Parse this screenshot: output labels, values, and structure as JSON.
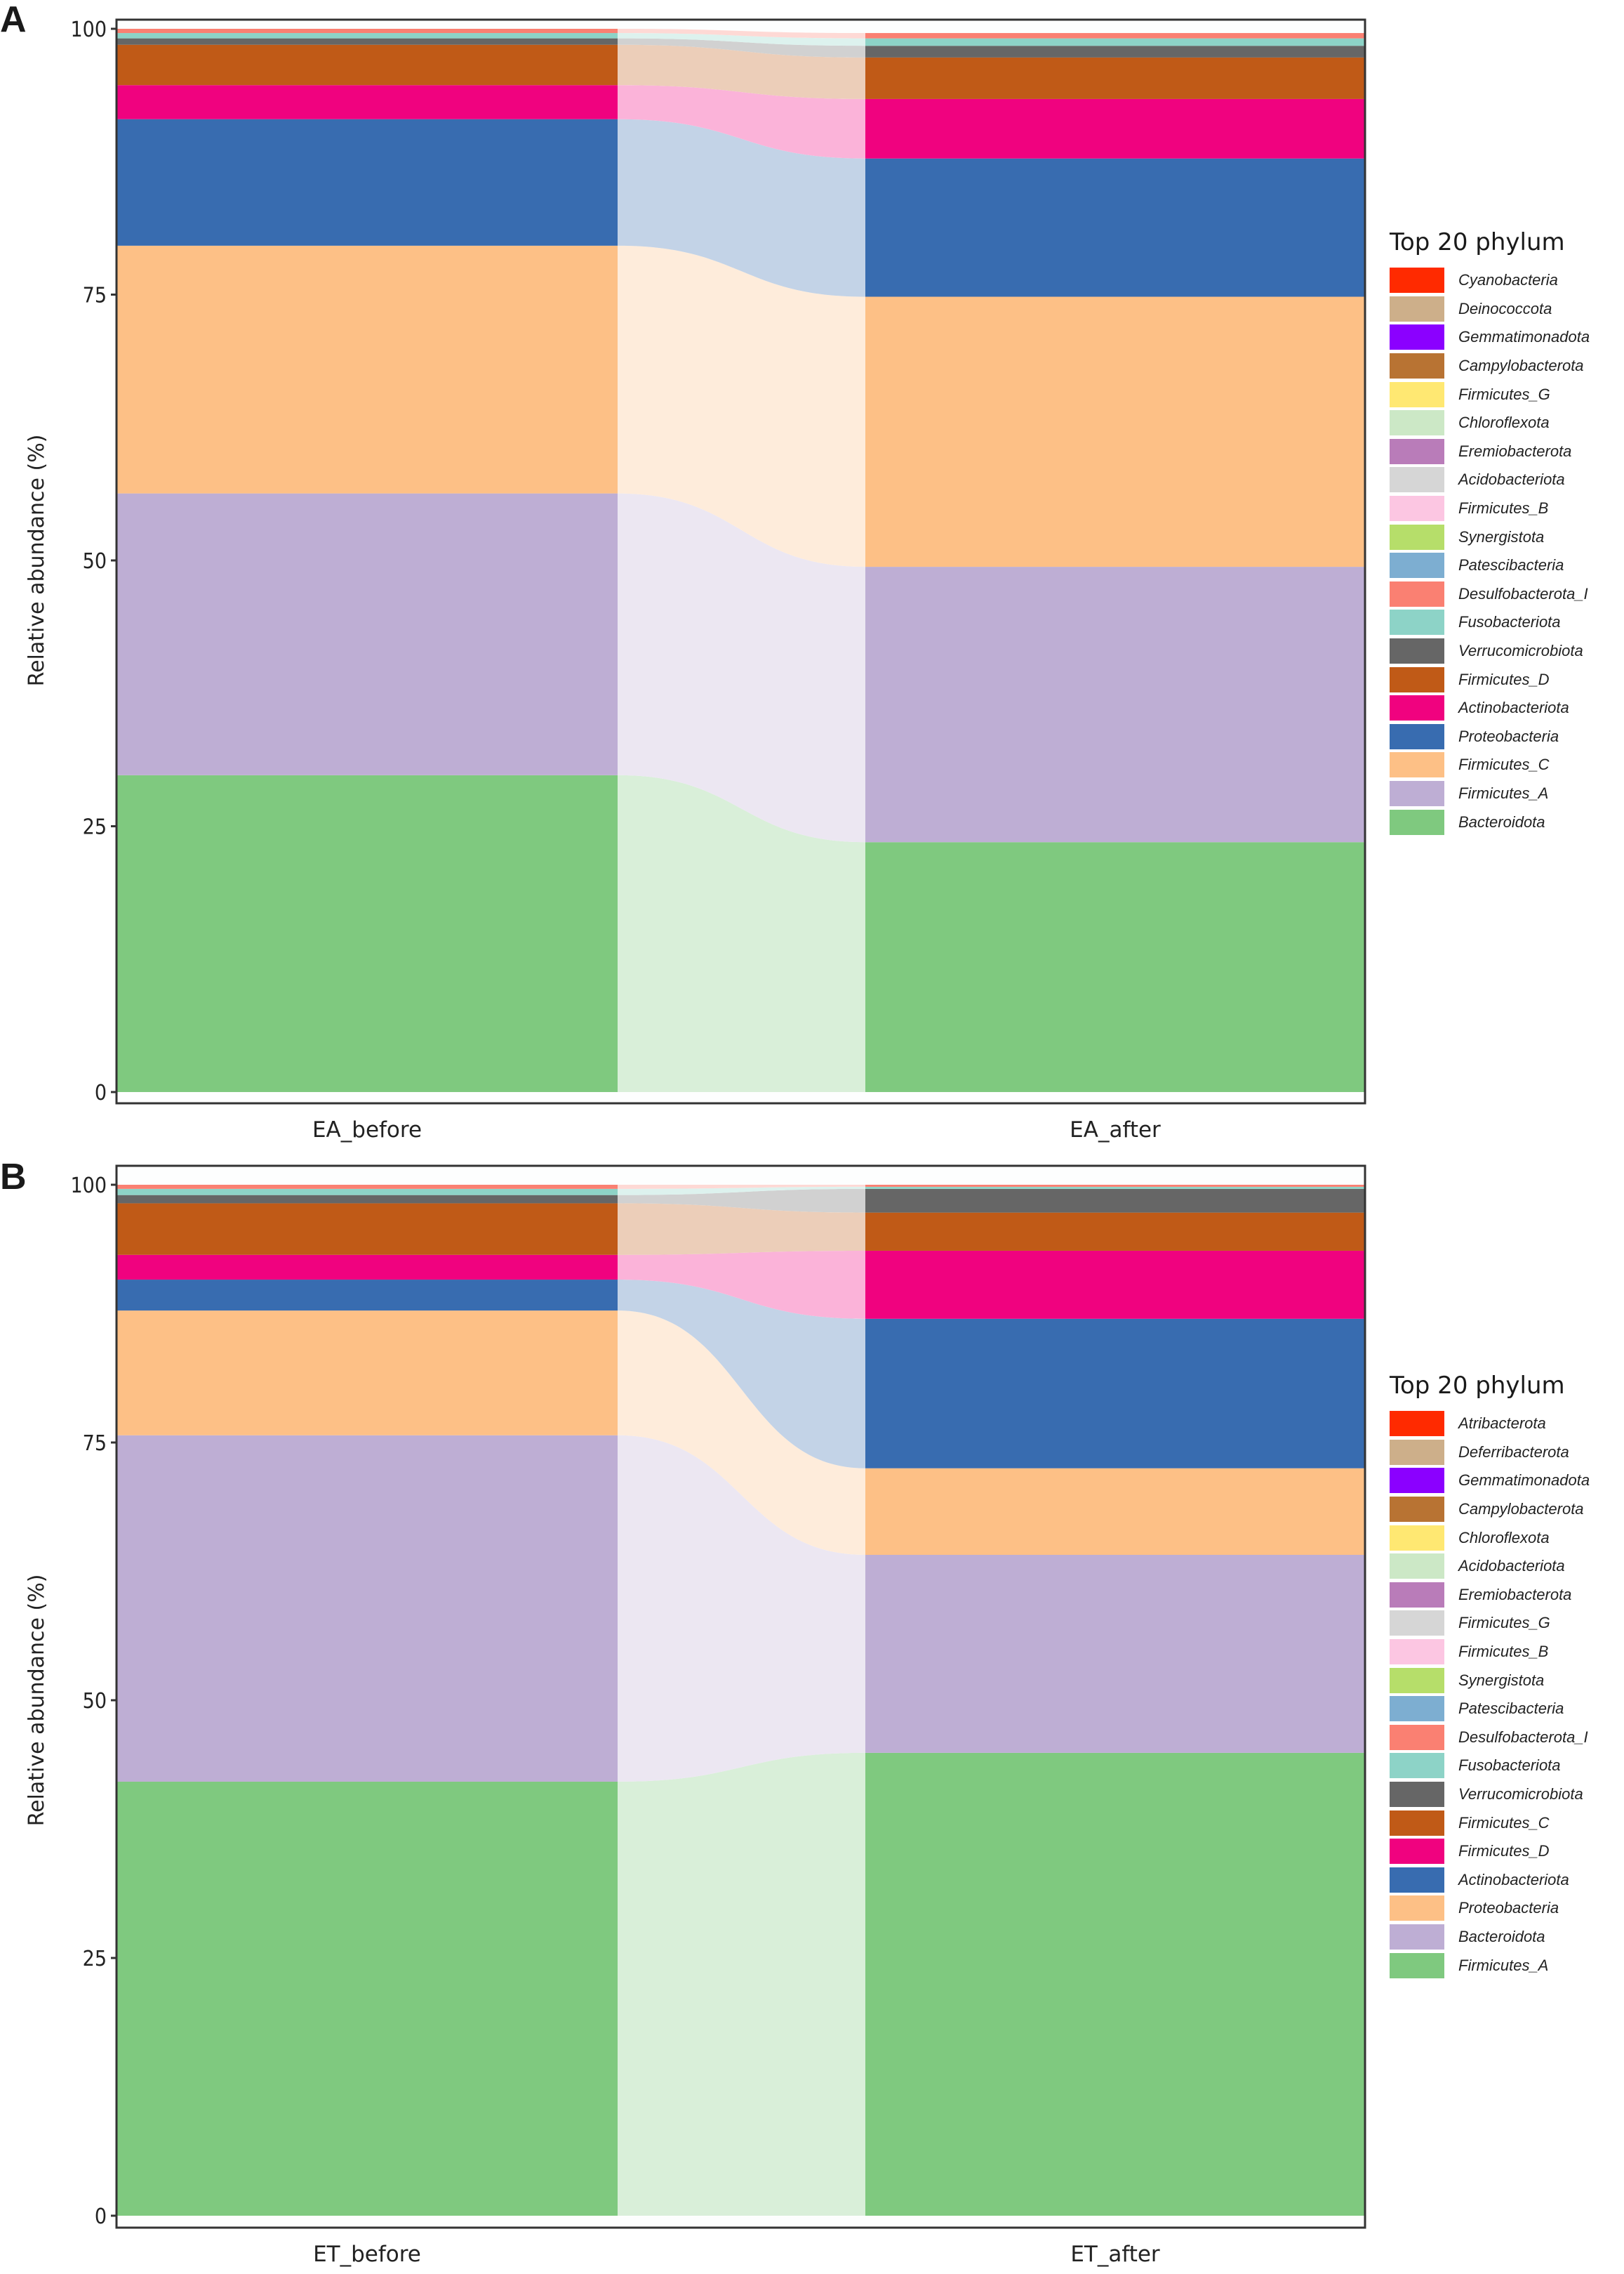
{
  "figure": {
    "panels": [
      {
        "letter": "A",
        "ylabel": "Relative abundance (%)",
        "yticks": [
          "0",
          "25",
          "50",
          "75",
          "100"
        ],
        "legend_title": "Top 20 phylum"
      },
      {
        "letter": "B",
        "ylabel": "Relative abundance (%)",
        "yticks": [
          "0",
          "25",
          "50",
          "75",
          "100"
        ],
        "legend_title": "Top 20 phylum"
      }
    ]
  },
  "chart_data": [
    {
      "type": "bar",
      "subtype": "stacked alluvial (bars linked by flow ribbons)",
      "title": "A",
      "xlabel": "",
      "ylabel": "Relative abundance (%)",
      "ylim": [
        0,
        100
      ],
      "yticks": [
        0,
        25,
        50,
        75,
        100
      ],
      "categories": [
        "EA_before",
        "EA_after"
      ],
      "legend_title": "Top 20 phylum",
      "legend_position": "right",
      "legend": [
        {
          "name": "Cyanobacteria",
          "color": "#FF2A00"
        },
        {
          "name": "Deinococcota",
          "color": "#CDAF8A"
        },
        {
          "name": "Gemmatimonadota",
          "color": "#8B00FF"
        },
        {
          "name": "Campylobacterota",
          "color": "#B87333"
        },
        {
          "name": "Firmicutes_G",
          "color": "#FFE872"
        },
        {
          "name": "Chloroflexota",
          "color": "#CCE8C6"
        },
        {
          "name": "Eremiobacterota",
          "color": "#B97CB9"
        },
        {
          "name": "Acidobacteriota",
          "color": "#D6D6D6"
        },
        {
          "name": "Firmicutes_B",
          "color": "#FCC6E2"
        },
        {
          "name": "Synergistota",
          "color": "#B6DE6A"
        },
        {
          "name": "Patescibacteria",
          "color": "#7DAED1"
        },
        {
          "name": "Desulfobacterota_I",
          "color": "#FA8072"
        },
        {
          "name": "Fusobacteriota",
          "color": "#8DD3C7"
        },
        {
          "name": "Verrucomicrobiota",
          "color": "#666666"
        },
        {
          "name": "Firmicutes_D",
          "color": "#C05A17"
        },
        {
          "name": "Actinobacteriota",
          "color": "#F0027F"
        },
        {
          "name": "Proteobacteria",
          "color": "#386CB0"
        },
        {
          "name": "Firmicutes_C",
          "color": "#FDC086"
        },
        {
          "name": "Firmicutes_A",
          "color": "#BEAED4"
        },
        {
          "name": "Bacteroidota",
          "color": "#7FC97F"
        }
      ],
      "series": [
        {
          "name": "Bacteroidota",
          "values": [
            29.8,
            23.5
          ]
        },
        {
          "name": "Firmicutes_A",
          "values": [
            26.5,
            25.9
          ]
        },
        {
          "name": "Firmicutes_C",
          "values": [
            23.3,
            25.4
          ]
        },
        {
          "name": "Proteobacteria",
          "values": [
            11.9,
            13.0
          ]
        },
        {
          "name": "Actinobacteriota",
          "values": [
            3.2,
            5.6
          ]
        },
        {
          "name": "Firmicutes_D",
          "values": [
            3.8,
            3.9
          ]
        },
        {
          "name": "Verrucomicrobiota",
          "values": [
            0.6,
            1.1
          ]
        },
        {
          "name": "Fusobacteriota",
          "values": [
            0.5,
            0.7
          ]
        },
        {
          "name": "Desulfobacterota_I",
          "values": [
            0.4,
            0.5
          ]
        }
      ]
    },
    {
      "type": "bar",
      "subtype": "stacked alluvial (bars linked by flow ribbons)",
      "title": "B",
      "xlabel": "",
      "ylabel": "Relative abundance (%)",
      "ylim": [
        0,
        100
      ],
      "yticks": [
        0,
        25,
        50,
        75,
        100
      ],
      "categories": [
        "ET_before",
        "ET_after"
      ],
      "legend_title": "Top 20 phylum",
      "legend_position": "right",
      "legend": [
        {
          "name": "Atribacterota",
          "color": "#FF2A00"
        },
        {
          "name": "Deferribacterota",
          "color": "#CDAF8A"
        },
        {
          "name": "Gemmatimonadota",
          "color": "#8B00FF"
        },
        {
          "name": "Campylobacterota",
          "color": "#B87333"
        },
        {
          "name": "Chloroflexota",
          "color": "#FFE872"
        },
        {
          "name": "Acidobacteriota",
          "color": "#CCE8C6"
        },
        {
          "name": "Eremiobacterota",
          "color": "#B97CB9"
        },
        {
          "name": "Firmicutes_G",
          "color": "#D6D6D6"
        },
        {
          "name": "Firmicutes_B",
          "color": "#FCC6E2"
        },
        {
          "name": "Synergistota",
          "color": "#B6DE6A"
        },
        {
          "name": "Patescibacteria",
          "color": "#7DAED1"
        },
        {
          "name": "Desulfobacterota_I",
          "color": "#FA8072"
        },
        {
          "name": "Fusobacteriota",
          "color": "#8DD3C7"
        },
        {
          "name": "Verrucomicrobiota",
          "color": "#666666"
        },
        {
          "name": "Firmicutes_C",
          "color": "#C05A17"
        },
        {
          "name": "Firmicutes_D",
          "color": "#F0027F"
        },
        {
          "name": "Actinobacteriota",
          "color": "#386CB0"
        },
        {
          "name": "Proteobacteria",
          "color": "#FDC086"
        },
        {
          "name": "Bacteroidota",
          "color": "#BEAED4"
        },
        {
          "name": "Firmicutes_A",
          "color": "#7FC97F"
        }
      ],
      "series": [
        {
          "name": "Firmicutes_A",
          "values": [
            42.1,
            44.9
          ]
        },
        {
          "name": "Bacteroidota",
          "values": [
            33.6,
            19.2
          ]
        },
        {
          "name": "Proteobacteria",
          "values": [
            12.1,
            8.4
          ]
        },
        {
          "name": "Actinobacteriota",
          "values": [
            3.0,
            14.5
          ]
        },
        {
          "name": "Firmicutes_D",
          "values": [
            2.4,
            6.6
          ]
        },
        {
          "name": "Firmicutes_C",
          "values": [
            5.0,
            3.7
          ]
        },
        {
          "name": "Verrucomicrobiota",
          "values": [
            0.8,
            2.3
          ]
        },
        {
          "name": "Fusobacteriota",
          "values": [
            0.6,
            0.2
          ]
        },
        {
          "name": "Desulfobacterota_I",
          "values": [
            0.4,
            0.2
          ]
        }
      ]
    }
  ]
}
